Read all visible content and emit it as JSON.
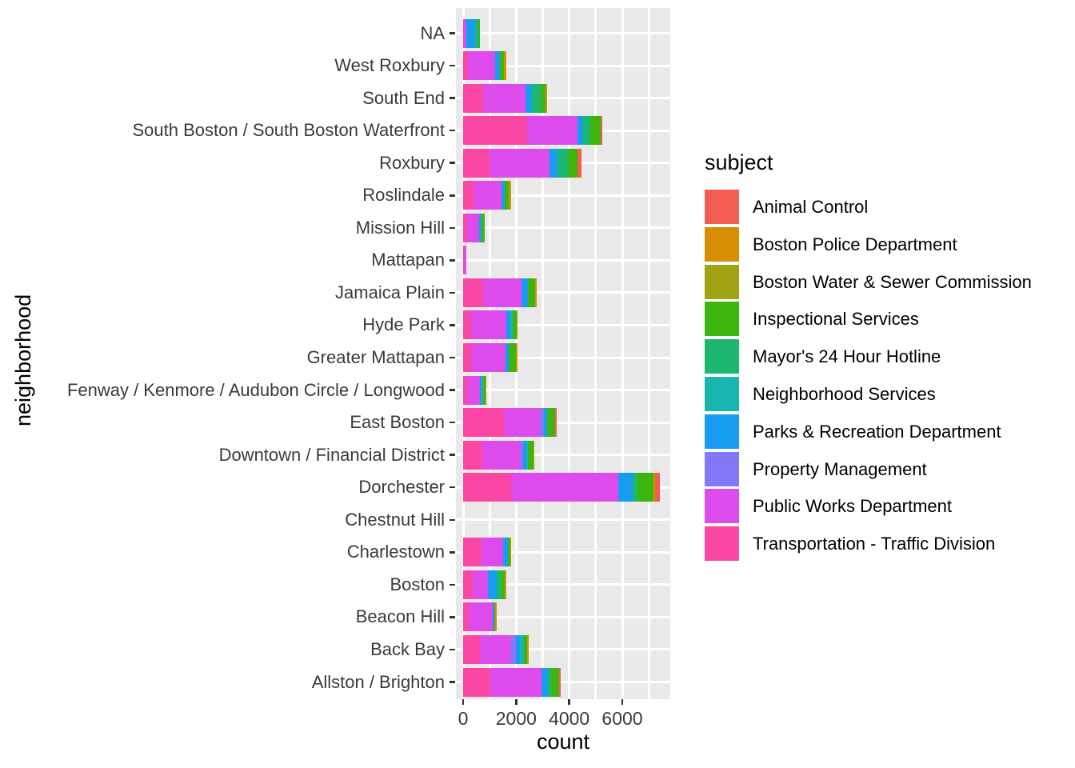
{
  "figure": {
    "background": "#FFFFFF",
    "panel_background": "#E9E9E9",
    "grid_color": "#FFFFFF",
    "tick_color": "#333333",
    "axis_text_color": "#3A3A3A"
  },
  "chart_data": {
    "type": "bar",
    "orientation": "horizontal",
    "stacked": true,
    "title": "",
    "xlabel": "count",
    "ylabel": "neighborhood",
    "legend_title": "subject",
    "legend_position": "right",
    "grid": true,
    "xlim": [
      0,
      7800
    ],
    "x_tick_values": [
      0,
      2000,
      4000,
      6000
    ],
    "x_minor_step": 1000,
    "categories": [
      "NA",
      "West Roxbury",
      "South End",
      "South Boston / South Boston Waterfront",
      "Roxbury",
      "Roslindale",
      "Mission Hill",
      "Mattapan",
      "Jamaica Plain",
      "Hyde Park",
      "Greater Mattapan",
      "Fenway / Kenmore / Audubon Circle / Longwood",
      "East Boston",
      "Downtown / Financial District",
      "Dorchester",
      "Chestnut Hill",
      "Charlestown",
      "Boston",
      "Beacon Hill",
      "Back Bay",
      "Allston / Brighton"
    ],
    "series": [
      {
        "name": "Animal Control",
        "color": "#F25D52",
        "values": [
          0,
          0,
          0,
          60,
          140,
          0,
          0,
          0,
          0,
          0,
          0,
          0,
          60,
          0,
          180,
          0,
          0,
          0,
          0,
          0,
          60
        ]
      },
      {
        "name": "Boston Police Department",
        "color": "#D78E00",
        "values": [
          0,
          90,
          60,
          0,
          0,
          50,
          0,
          0,
          60,
          30,
          60,
          30,
          0,
          30,
          60,
          0,
          30,
          60,
          60,
          60,
          0
        ]
      },
      {
        "name": "Boston Water & Sewer Commission",
        "color": "#A2A313",
        "values": [
          0,
          0,
          0,
          0,
          0,
          50,
          0,
          0,
          0,
          0,
          0,
          0,
          0,
          0,
          0,
          0,
          0,
          0,
          0,
          0,
          0
        ]
      },
      {
        "name": "Inspectional Services",
        "color": "#3CB50F",
        "values": [
          30,
          150,
          190,
          390,
          380,
          130,
          100,
          0,
          270,
          150,
          270,
          70,
          300,
          210,
          600,
          0,
          90,
          120,
          30,
          90,
          300
        ]
      },
      {
        "name": "Mayor's 24 Hour Hotline",
        "color": "#1DB86F",
        "values": [
          150,
          0,
          330,
          270,
          370,
          0,
          40,
          0,
          0,
          0,
          0,
          0,
          0,
          0,
          180,
          0,
          0,
          180,
          0,
          60,
          120
        ]
      },
      {
        "name": "Neighborhood Services",
        "color": "#17B7B0",
        "values": [
          0,
          0,
          0,
          0,
          0,
          0,
          0,
          0,
          0,
          90,
          0,
          60,
          0,
          60,
          0,
          0,
          0,
          0,
          0,
          120,
          0
        ]
      },
      {
        "name": "Parks & Recreation Department",
        "color": "#189CF2",
        "values": [
          330,
          180,
          250,
          210,
          300,
          140,
          60,
          0,
          240,
          140,
          130,
          70,
          120,
          120,
          550,
          0,
          180,
          330,
          60,
          150,
          240
        ]
      },
      {
        "name": "Property Management",
        "color": "#8379F8",
        "values": [
          0,
          0,
          0,
          0,
          0,
          0,
          0,
          0,
          0,
          0,
          0,
          0,
          150,
          100,
          0,
          0,
          0,
          0,
          0,
          180,
          0
        ]
      },
      {
        "name": "Public Works Department",
        "color": "#DE4BEC",
        "values": [
          90,
          1030,
          1580,
          1910,
          2270,
          1005,
          470,
          90,
          1440,
          1330,
          1290,
          490,
          1360,
          1430,
          4030,
          0,
          820,
          570,
          900,
          1180,
          1930
        ]
      },
      {
        "name": "Transportation - Traffic Division",
        "color": "#FB47A4",
        "values": [
          30,
          180,
          760,
          2410,
          1000,
          430,
          140,
          30,
          765,
          300,
          300,
          140,
          1540,
          730,
          1810,
          0,
          680,
          370,
          210,
          630,
          1030
        ]
      }
    ]
  }
}
